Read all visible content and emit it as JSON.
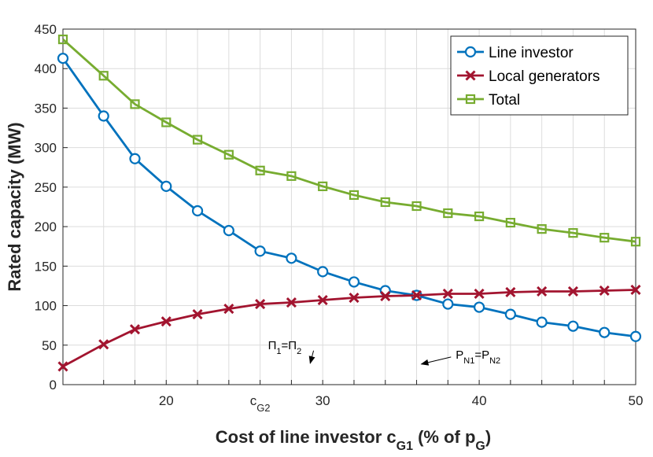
{
  "chart_data": {
    "type": "line",
    "xlabel": "Cost of line investor c",
    "xlabel_sub": "G1",
    "xlabel_tail": " (% of p",
    "xlabel_tail_sub": "G",
    "xlabel_end": ")",
    "ylabel": "Rated capacity (MW)",
    "xlim": [
      13.4,
      50
    ],
    "ylim": [
      0,
      450
    ],
    "x_ticks": [
      20,
      30,
      40,
      50
    ],
    "x_tick_labels": [
      "20",
      "30",
      "40",
      "50"
    ],
    "extra_x_tick": {
      "x": 26,
      "label": "c",
      "sub": "G2"
    },
    "y_ticks": [
      0,
      50,
      100,
      150,
      200,
      250,
      300,
      350,
      400,
      450
    ],
    "y_tick_labels": [
      "0",
      "50",
      "100",
      "150",
      "200",
      "250",
      "300",
      "350",
      "400",
      "450"
    ],
    "grid": true,
    "legend_position": "top-right",
    "x": [
      13.4,
      16,
      18,
      20,
      22,
      24,
      26,
      28,
      30,
      32,
      34,
      36,
      38,
      40,
      42,
      44,
      46,
      48,
      50
    ],
    "series": [
      {
        "name": "Line investor",
        "color": "#0072BD",
        "marker": "circle",
        "values": [
          413,
          340,
          286,
          251,
          220,
          195,
          169,
          160,
          143,
          130,
          119,
          113,
          102,
          98,
          89,
          79,
          74,
          66,
          61
        ]
      },
      {
        "name": "Local generators",
        "color": "#A2142F",
        "marker": "x",
        "values": [
          23,
          51,
          70,
          80,
          89,
          96,
          102,
          104,
          107,
          110,
          112,
          113,
          115,
          115,
          117,
          118,
          118,
          119,
          120
        ]
      },
      {
        "name": "Total",
        "color": "#77AC30",
        "marker": "square",
        "values": [
          437,
          391,
          355,
          332,
          310,
          291,
          271,
          264,
          251,
          240,
          231,
          226,
          217,
          213,
          205,
          197,
          192,
          186,
          181
        ]
      }
    ],
    "annotations": [
      {
        "id": "pi",
        "left": "Π",
        "left_sub": "1",
        "mid": "=Π",
        "right_sub": "2",
        "x": 26.5,
        "y": 45,
        "arrow_to": [
          29.2,
          27
        ]
      },
      {
        "id": "pn",
        "left": "P",
        "left_sub": "N1",
        "mid": "=P",
        "right_sub": "N2",
        "x": 38.5,
        "y": 33,
        "arrow_from": [
          38.2,
          35
        ],
        "arrow_to": [
          36.3,
          26
        ]
      }
    ]
  }
}
